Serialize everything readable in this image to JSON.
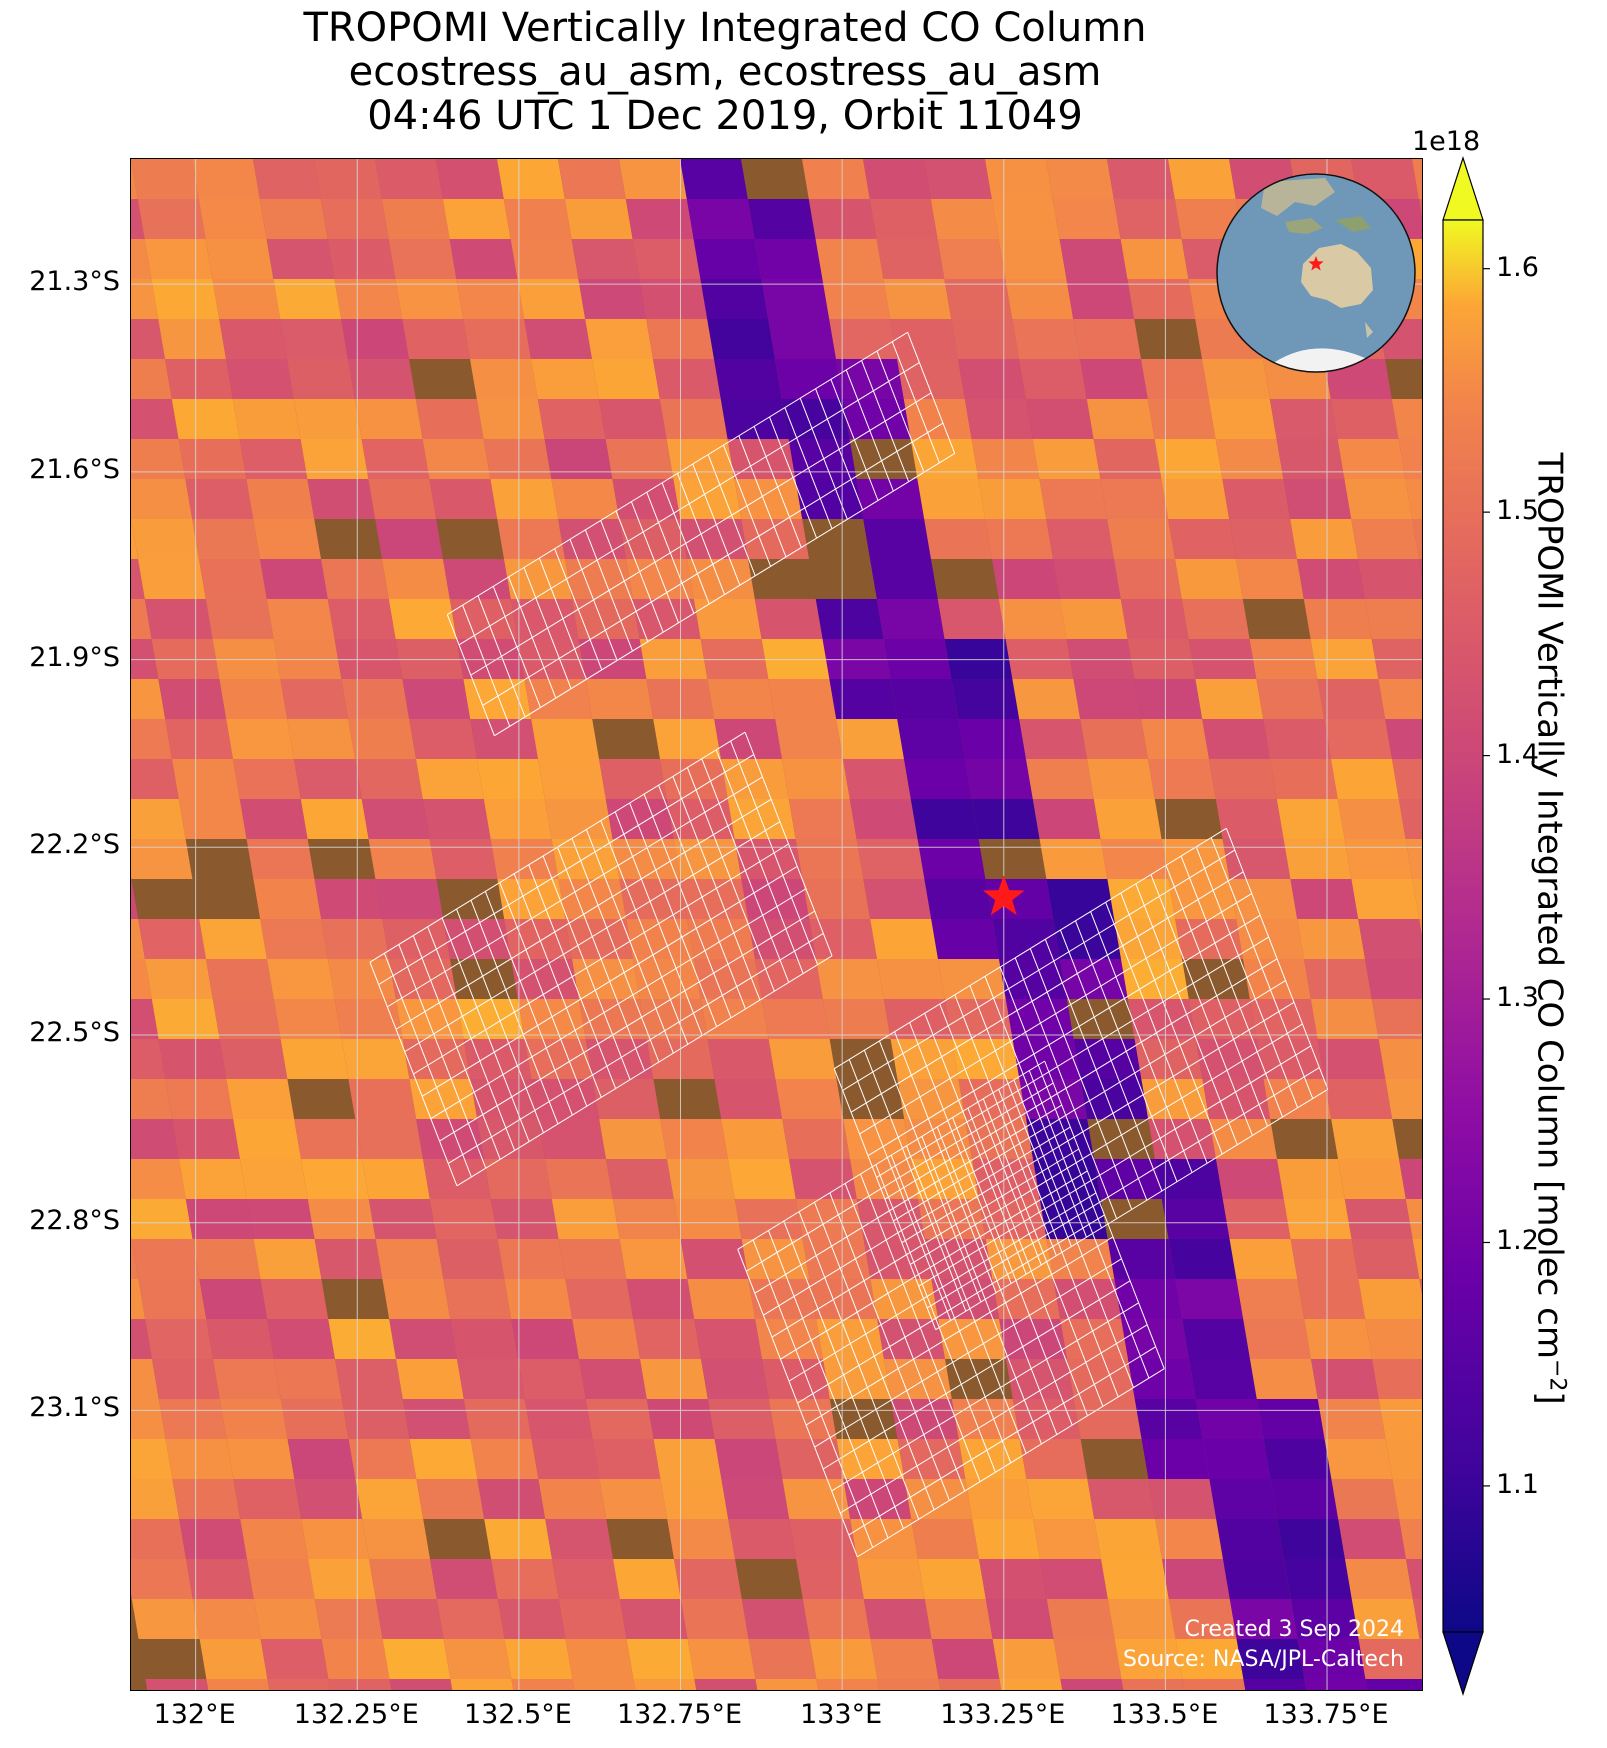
{
  "title": {
    "line1": "TROPOMI Vertically Integrated CO Column",
    "line2": "ecostress_au_asm, ecostress_au_asm",
    "line3": "04:46 UTC 1 Dec 2019, Orbit 11049"
  },
  "map": {
    "lat_labels": [
      "21.3°S",
      "21.6°S",
      "21.9°S",
      "22.2°S",
      "22.5°S",
      "22.8°S",
      "23.1°S"
    ],
    "lon_labels": [
      "132°E",
      "132.25°E",
      "132.5°E",
      "132.75°E",
      "133°E",
      "133.25°E",
      "133.5°E",
      "133.75°E"
    ],
    "lat_values": [
      -21.3,
      -21.6,
      -21.9,
      -22.2,
      -22.5,
      -22.8,
      -23.1
    ],
    "lon_values": [
      132.0,
      132.25,
      132.5,
      132.75,
      133.0,
      133.25,
      133.5,
      133.75
    ],
    "lon_range": [
      131.9,
      133.9
    ],
    "lat_range": [
      -21.1,
      -23.55
    ],
    "target_marker": {
      "lon": 133.25,
      "lat": -22.28,
      "symbol": "red-star"
    },
    "credits": {
      "created": "Created 3 Sep 2024",
      "source": "Source: NASA/JPL-Caltech"
    }
  },
  "colorbar": {
    "exponent": "1e18",
    "title": "TROPOMI Vertically Integrated CO Column [molec cm⁻²]",
    "title_main": "TROPOMI Vertically Integrated CO Column [molec cm",
    "title_sup": "−2",
    "title_end": "]",
    "ticks": [
      "1.1",
      "1.2",
      "1.3",
      "1.4",
      "1.5",
      "1.6"
    ],
    "tick_values": [
      1.1,
      1.2,
      1.3,
      1.4,
      1.5,
      1.6
    ],
    "range": [
      1.04,
      1.62
    ],
    "colormap": "plasma",
    "extend": "both"
  },
  "colors": {
    "background_earth": "#8a5a2e",
    "marker": "#ff1a1a",
    "grid": "#d0d0d0",
    "target_grid": "#ffffff"
  }
}
